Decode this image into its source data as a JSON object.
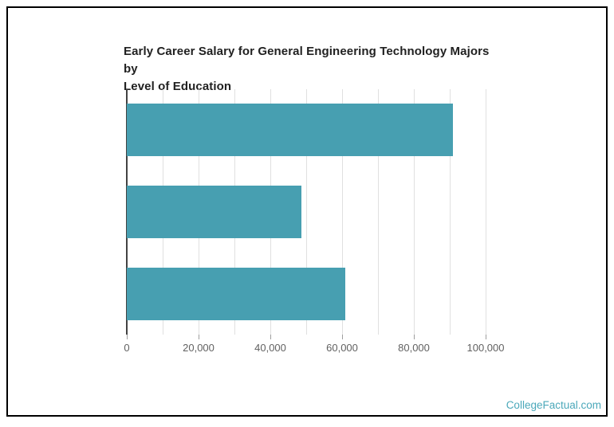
{
  "frame": {
    "border_color": "#000000",
    "background": "#ffffff"
  },
  "watermark": {
    "label": "CollegeFactual.com",
    "color": "#4BA8BA"
  },
  "chart_data": {
    "type": "bar",
    "orientation": "horizontal",
    "title": "Early Career Salary for General Engineering Technology Majors by Level of Education",
    "title_lines": [
      "Early Career Salary for General Engineering Technology Majors by",
      "Level of Education"
    ],
    "categories": [
      "",
      "",
      ""
    ],
    "values": [
      90800,
      48700,
      60900
    ],
    "xlabel": "",
    "ylabel": "",
    "xlim": [
      0,
      100000
    ],
    "grid_step": 10000,
    "grid_on": true,
    "x_ticks": [
      0,
      20000,
      40000,
      60000,
      80000,
      100000
    ],
    "x_tick_labels": [
      "0",
      "20,000",
      "40,000",
      "60,000",
      "80,000",
      "100,000"
    ],
    "legend": "none",
    "bar_color": "#479FB1",
    "title_color": "#212121",
    "tick_label_color": "#616161",
    "gridline_color": "#E0E0E0",
    "axis_line_color": "#424242"
  }
}
